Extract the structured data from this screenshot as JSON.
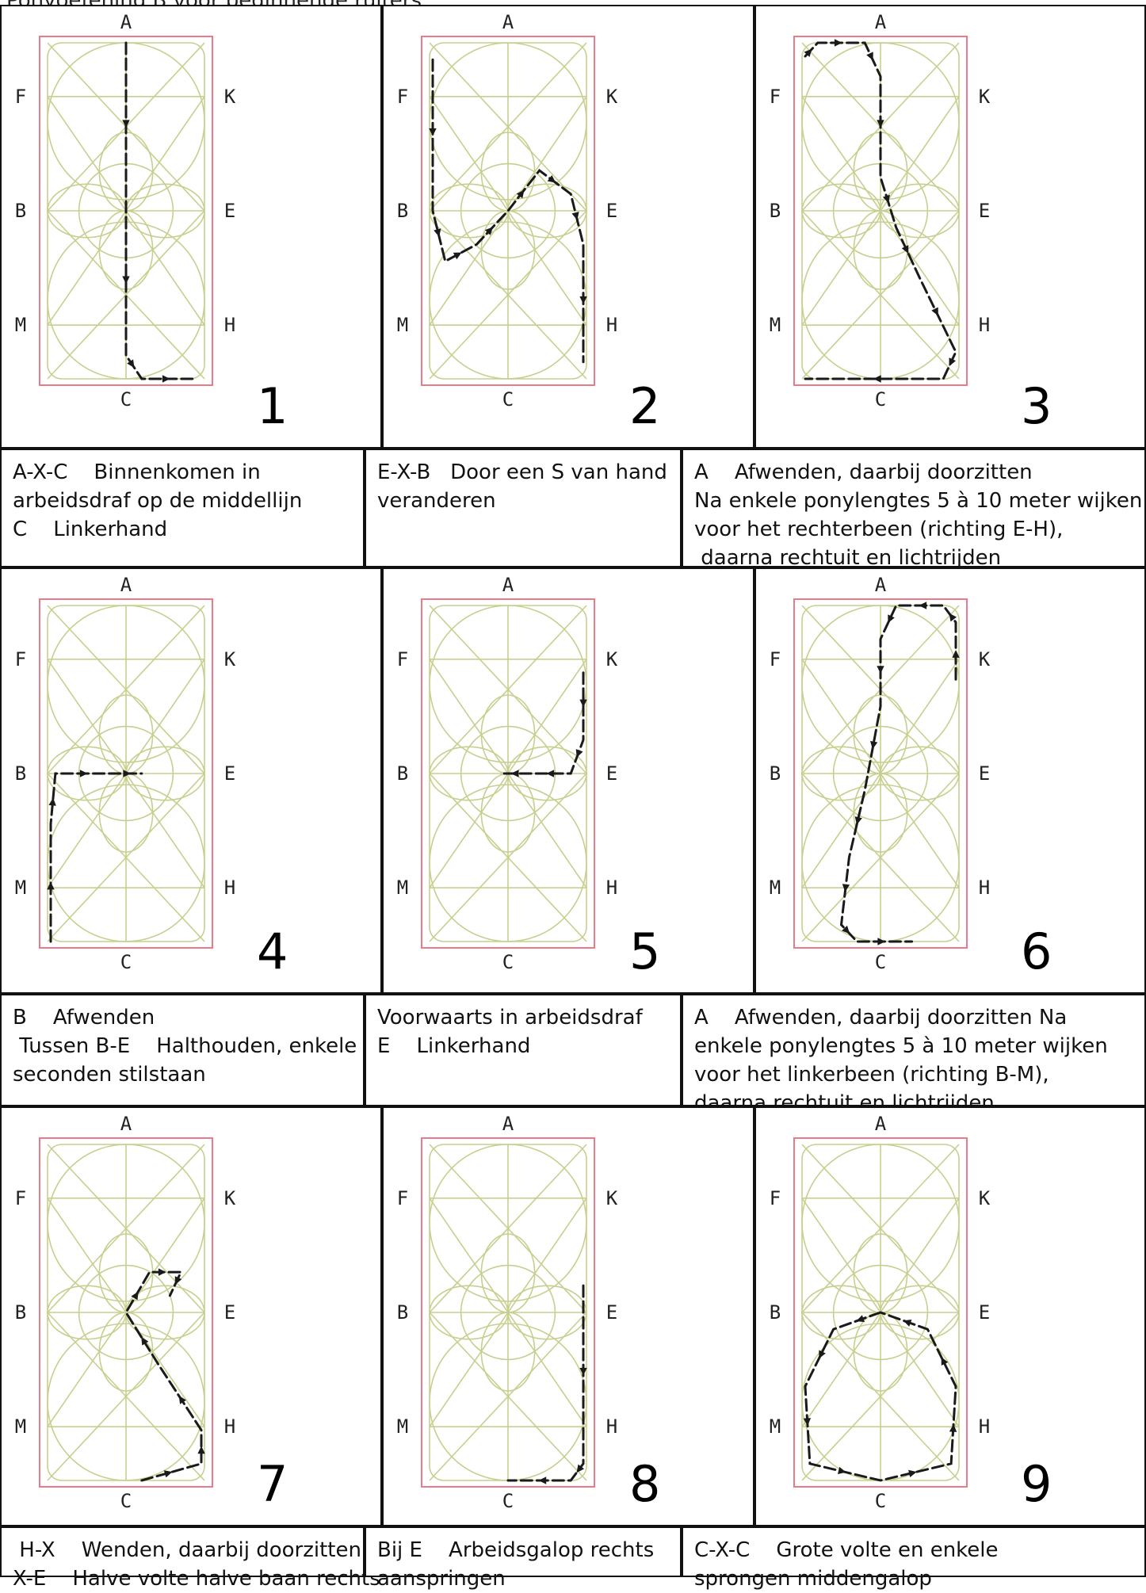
{
  "header": {
    "text": "Ponyoefening B voor beginnende ruiters"
  },
  "arena_letters": {
    "top": "A",
    "bottom": "C",
    "left": [
      "F",
      "B",
      "M"
    ],
    "right": [
      "K",
      "E",
      "H"
    ]
  },
  "colors": {
    "arena_border": "#e87a8a",
    "grid": "#c8cf8e",
    "path": "#1a1a1a"
  },
  "figures": [
    {
      "number": "1",
      "lines": [
        "A-X-C    Binnenkomen in",
        "arbeidsdraf op de middellijn",
        "C    Linkerhand"
      ]
    },
    {
      "number": "2",
      "lines": [
        "E-X-B   Door een S van hand",
        "veranderen"
      ]
    },
    {
      "number": "3",
      "lines": [
        "A    Afwenden, daarbij doorzitten",
        "Na enkele ponylengtes 5 à 10 meter wijken",
        "voor het rechterbeen (richting E-H),",
        " daarna rechtuit en lichtrijden"
      ]
    },
    {
      "number": "4",
      "lines": [
        "B    Afwenden",
        " Tussen B-E    Halthouden, enkele",
        "seconden stilstaan"
      ]
    },
    {
      "number": "5",
      "lines": [
        "Voorwaarts in arbeidsdraf",
        "E    Linkerhand"
      ]
    },
    {
      "number": "6",
      "lines": [
        "A    Afwenden, daarbij doorzitten Na",
        "enkele ponylengtes 5 à 10 meter wijken",
        "voor het linkerbeen (richting B-M),",
        "daarna rechtuit en lichtrijden"
      ]
    },
    {
      "number": "7",
      "lines": [
        " H-X    Wenden, daarbij doorzitten",
        "X-E    Halve volte halve baan rechts"
      ]
    },
    {
      "number": "8",
      "lines": [
        "Bij E    Arbeidsgalop rechts",
        "aanspringen"
      ]
    },
    {
      "number": "9",
      "lines": [
        "C-X-C    Grote volte en enkele",
        "sprongen middengalop"
      ]
    }
  ]
}
